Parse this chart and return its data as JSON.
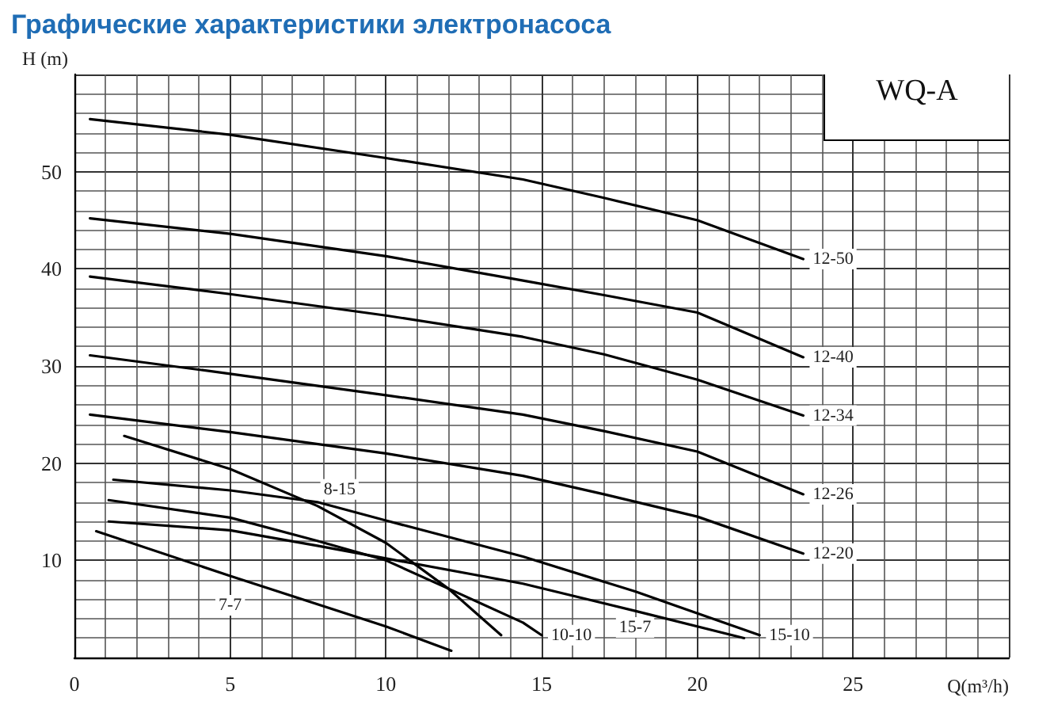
{
  "chart_data": {
    "type": "line",
    "title": "Графические характеристики электронасоса",
    "xlabel": "Q(m³/h)",
    "ylabel": "H (m)",
    "annotations": [
      "WQ-A"
    ],
    "xlim": [
      0,
      30
    ],
    "ylim": [
      0,
      60
    ],
    "xticks": [
      0,
      5,
      10,
      15,
      20,
      25
    ],
    "yticks": [
      10,
      20,
      30,
      40,
      50
    ],
    "grid": true,
    "legend": false,
    "marker": "none",
    "line_style": "solid",
    "series": [
      {
        "name": "12-50",
        "color": "#000000",
        "x": [
          0.5,
          5,
          10,
          14.4,
          17,
          20,
          23.4
        ],
        "values": [
          55.4,
          53.8,
          51.4,
          49.2,
          47.3,
          45,
          41
        ]
      },
      {
        "name": "12-40",
        "color": "#000000",
        "x": [
          0.5,
          5,
          10,
          14.4,
          17,
          20,
          23.4
        ],
        "values": [
          45.2,
          43.6,
          41.3,
          38.8,
          37.3,
          35.5,
          30.9
        ]
      },
      {
        "name": "12-34",
        "color": "#000000",
        "x": [
          0.5,
          5,
          10,
          14.4,
          17,
          20,
          23.4
        ],
        "values": [
          39.2,
          37.4,
          35.2,
          33,
          31.2,
          28.6,
          24.9
        ]
      },
      {
        "name": "12-26",
        "color": "#000000",
        "x": [
          0.5,
          5,
          10,
          14.4,
          17,
          20,
          23.4
        ],
        "values": [
          31.1,
          29.2,
          27,
          25,
          23.3,
          21.2,
          16.8
        ]
      },
      {
        "name": "12-20",
        "color": "#000000",
        "x": [
          0.5,
          5,
          10,
          14.4,
          17,
          20,
          23.4
        ],
        "values": [
          25,
          23.2,
          21,
          18.7,
          16.8,
          14.5,
          10.7
        ]
      },
      {
        "name": "8-15",
        "color": "#000000",
        "x": [
          1.6,
          5,
          7.8,
          10,
          12,
          13.7
        ],
        "values": [
          22.8,
          19.4,
          15.6,
          11.8,
          7.1,
          2.3
        ]
      },
      {
        "name": "15-10",
        "color": "#000000",
        "x": [
          1.25,
          5,
          7.8,
          10,
          14.4,
          18,
          22
        ],
        "values": [
          18.3,
          17.2,
          16,
          14.1,
          10.4,
          6.8,
          2.3
        ]
      },
      {
        "name": "10-10",
        "color": "#000000",
        "x": [
          1.1,
          5,
          7.8,
          10,
          12,
          14.4,
          15
        ],
        "values": [
          16.2,
          14.4,
          12,
          10,
          7.1,
          3.6,
          2.3
        ]
      },
      {
        "name": "15-7",
        "color": "#000000",
        "x": [
          1.1,
          5,
          7.8,
          10,
          14.4,
          18,
          21.5
        ],
        "values": [
          14,
          13.1,
          11.5,
          10.2,
          7.6,
          4.8,
          2
        ]
      },
      {
        "name": "7-7",
        "color": "#000000",
        "x": [
          0.7,
          5,
          10,
          12.1
        ],
        "values": [
          13,
          8.4,
          3.2,
          0.7
        ]
      }
    ]
  }
}
